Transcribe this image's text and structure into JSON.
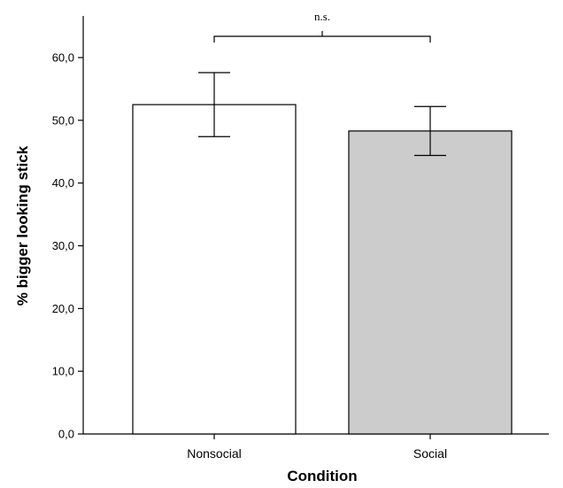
{
  "chart_data": {
    "type": "bar",
    "title": "",
    "xlabel": "Condition",
    "ylabel": "% bigger looking stick",
    "categories": [
      "Nonsocial",
      "Social"
    ],
    "values": [
      52.5,
      48.3
    ],
    "error_low": [
      47.4,
      44.4
    ],
    "error_high": [
      57.6,
      52.2
    ],
    "bar_colors": [
      "#ffffff",
      "#cccccc"
    ],
    "ylim": [
      0,
      60
    ],
    "yticks": [
      0,
      10,
      20,
      30,
      40,
      50,
      60
    ],
    "ytick_labels": [
      "0,0",
      "10,0",
      "20,0",
      "30,0",
      "40,0",
      "50,0",
      "60,0"
    ],
    "significance": {
      "label": "n.s.",
      "between": [
        "Nonsocial",
        "Social"
      ]
    },
    "grid": false,
    "legend": "none"
  }
}
